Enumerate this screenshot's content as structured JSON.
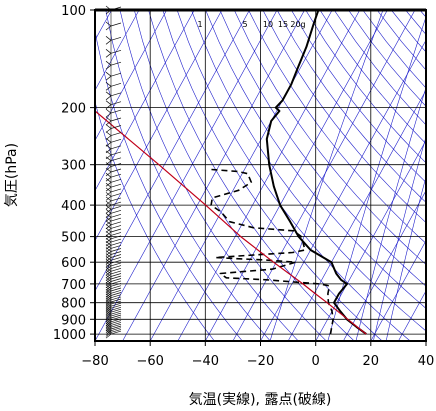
{
  "chart_data": {
    "type": "line",
    "title": "",
    "xlabel": "気温(実線), 露点(破線)",
    "ylabel": "気圧(hPa)",
    "xlim": [
      -80,
      40
    ],
    "ylim_hpa": [
      1050,
      100
    ],
    "y_scale": "log",
    "x_ticks": [
      -80,
      -60,
      -40,
      -20,
      0,
      20,
      40
    ],
    "y_ticks": [
      100,
      200,
      300,
      400,
      500,
      600,
      700,
      800,
      900,
      1000
    ],
    "grid": true,
    "mixing_ratio_labels": [
      "1",
      "5",
      "10",
      "15",
      "20g"
    ],
    "colors": {
      "temperature": "#000000",
      "dewpoint": "#000000",
      "parcel": "#c0001a",
      "guide_lines": "#2020cc",
      "grid": "#000000"
    },
    "series": [
      {
        "style": "solid",
        "pressure": [
          1000,
          950,
          900,
          850,
          800,
          750,
          700,
          680,
          650,
          600,
          550,
          500,
          450,
          400,
          350,
          300,
          250,
          220,
          205,
          200,
          190,
          170,
          150,
          130,
          110,
          100
        ],
        "temperature": [
          17,
          12,
          7,
          3,
          -1,
          -1,
          0,
          -3,
          -6,
          -10,
          -20,
          -27,
          -33,
          -40,
          -46,
          -52,
          -58,
          -60,
          -59,
          -61,
          -60,
          -60,
          -61,
          -62,
          -64,
          -65
        ]
      },
      {
        "style": "dashed",
        "pressure": [
          1000,
          950,
          900,
          850,
          800,
          750,
          710,
          700,
          690,
          680,
          670,
          650,
          630,
          600,
          590,
          585,
          580,
          560,
          550,
          500,
          480,
          470,
          450,
          420,
          400,
          380,
          360,
          340,
          320,
          315,
          310
        ],
        "dewpoint": [
          4,
          3,
          2,
          0,
          -3,
          -5,
          -6,
          -10,
          -20,
          -30,
          -45,
          -48,
          -30,
          -23,
          -35,
          -45,
          -53,
          -26,
          -22,
          -26,
          -30,
          -45,
          -55,
          -60,
          -65,
          -66,
          -58,
          -55,
          -58,
          -62,
          -73
        ]
      },
      {
        "style": "solid",
        "pressure": [
          1000,
          950,
          900,
          850,
          800,
          750,
          700,
          600,
          500,
          400,
          300,
          200
        ],
        "temperature": [
          17,
          12.2,
          7.3,
          2.1,
          -3.5,
          -9.6,
          -16,
          -31,
          -48,
          -67,
          -92,
          -128
        ]
      }
    ]
  }
}
